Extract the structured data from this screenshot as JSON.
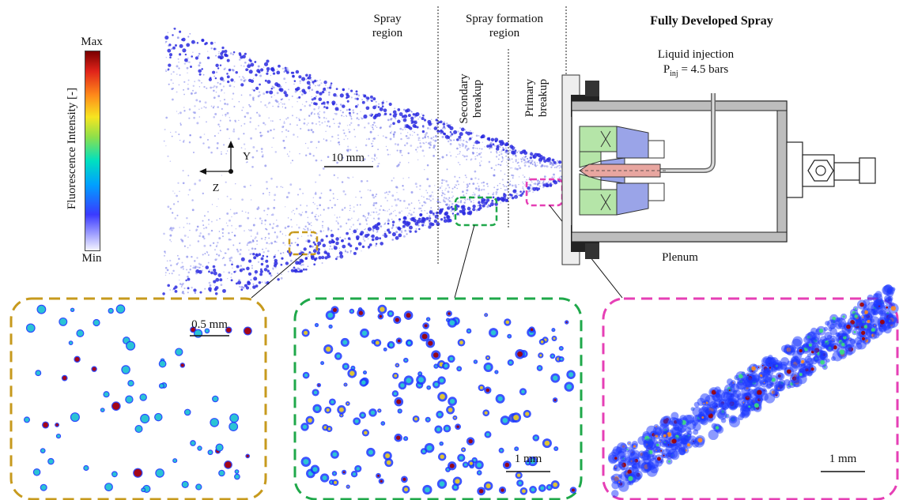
{
  "colorbar": {
    "max_label": "Max",
    "min_label": "Min",
    "title": "Fluorescence Intensity [-]",
    "stops": [
      "#f4f4ff",
      "#3a3aff",
      "#00a0ff",
      "#00e0c0",
      "#8ee04a",
      "#f7e520",
      "#ff8a1a",
      "#e0231a",
      "#7a0000"
    ]
  },
  "regions": {
    "spray_region": [
      "Spray",
      "region"
    ],
    "spray_formation_region": [
      "Spray formation",
      "region"
    ],
    "secondary_breakup": [
      "Secondary",
      "breakup"
    ],
    "primary_breakup": [
      "Primary",
      "breakup"
    ]
  },
  "injector": {
    "title": "Fully Developed Spray",
    "injection_label": "Liquid injection",
    "pressure_symbol": "P",
    "pressure_subscript": "inj",
    "pressure_value": " = 4.5 bars",
    "plenum_label": "Plenum"
  },
  "axes": {
    "y_label": "Y",
    "z_label": "Z"
  },
  "scale_bars": {
    "main": "10 mm",
    "inset_gold": "0.5 mm",
    "inset_green": "1 mm",
    "inset_pink": "1 mm"
  },
  "colors": {
    "gold": "#c79a1d",
    "green": "#1fa84a",
    "pink": "#e63fb5",
    "droplet_blue": "#2a2ae0",
    "injector_green": "#b5e5a8",
    "injector_blue": "#9aa4e8",
    "injector_red": "#e8a6a0"
  }
}
